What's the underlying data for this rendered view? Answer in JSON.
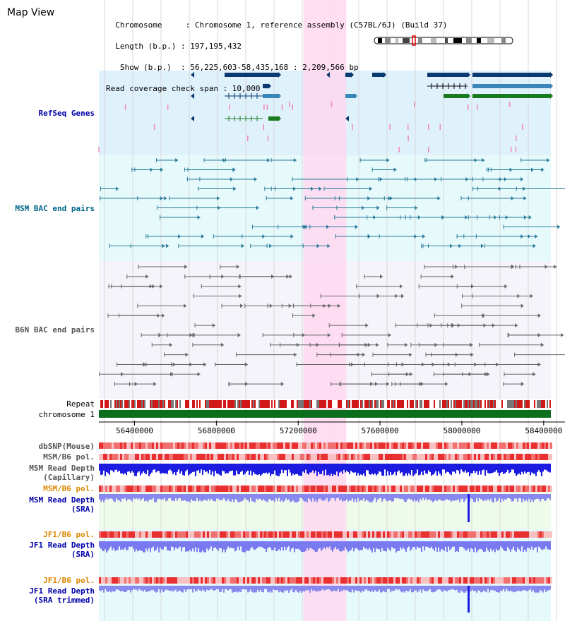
{
  "title": "Map View",
  "info": {
    "lines": [
      "  Chromosome     : Chromosome 1, reference assembly (C57BL/6J) (Build 37)",
      "  Length (b.p.) : 197,195,432",
      "   Show (b.p.)  : 56,225,603-58,435,168 : 2,209,566 bp",
      "Read coverage check span : 10,000"
    ]
  },
  "view": {
    "start": 56225603,
    "end": 58435168,
    "highlight": [
      57225603,
      57435168
    ]
  },
  "axis": {
    "ticks": [
      "56400000",
      "56800000",
      "57200000",
      "57600000",
      "58000000",
      "58400000"
    ]
  },
  "tracks": [
    {
      "id": "refseq",
      "label": "RefSeq Genes",
      "color": "#0000aa"
    },
    {
      "id": "msm-bac",
      "label": "MSM BAC end pairs",
      "color": "#006688"
    },
    {
      "id": "b6n-bac",
      "label": "B6N BAC end pairs",
      "color": "#555555"
    },
    {
      "id": "repeat",
      "label": "Repeat",
      "color": "#000000"
    },
    {
      "id": "chromosome",
      "label": "chromosome 1",
      "color": "#000000"
    },
    {
      "id": "dbsnp",
      "label": "dbSNP(Mouse)",
      "color": "#555555"
    },
    {
      "id": "msm-b6-pol",
      "label": "MSM/B6 pol.",
      "color": "#555555"
    },
    {
      "id": "msm-depth-cap",
      "label": "MSM Read Depth\n(Capillary)",
      "color": "#555555"
    },
    {
      "id": "msm-b6-pol-2",
      "label": "MSM/B6 pol.",
      "color": "#dd8800"
    },
    {
      "id": "msm-depth-sra",
      "label": "MSM Read Depth\n(SRA)",
      "color": "#0000aa"
    },
    {
      "id": "jf1-b6-pol",
      "label": "JF1/B6 pol.",
      "color": "#dd8800"
    },
    {
      "id": "jf1-depth-sra",
      "label": "JF1 Read Depth\n(SRA)",
      "color": "#0000aa"
    },
    {
      "id": "jf1-b6-pol-2",
      "label": "JF1/B6 pol.",
      "color": "#dd8800"
    },
    {
      "id": "jf1-depth-trim",
      "label": "JF1 Read Depth\n(SRA trimmed)",
      "color": "#0000aa"
    }
  ]
}
